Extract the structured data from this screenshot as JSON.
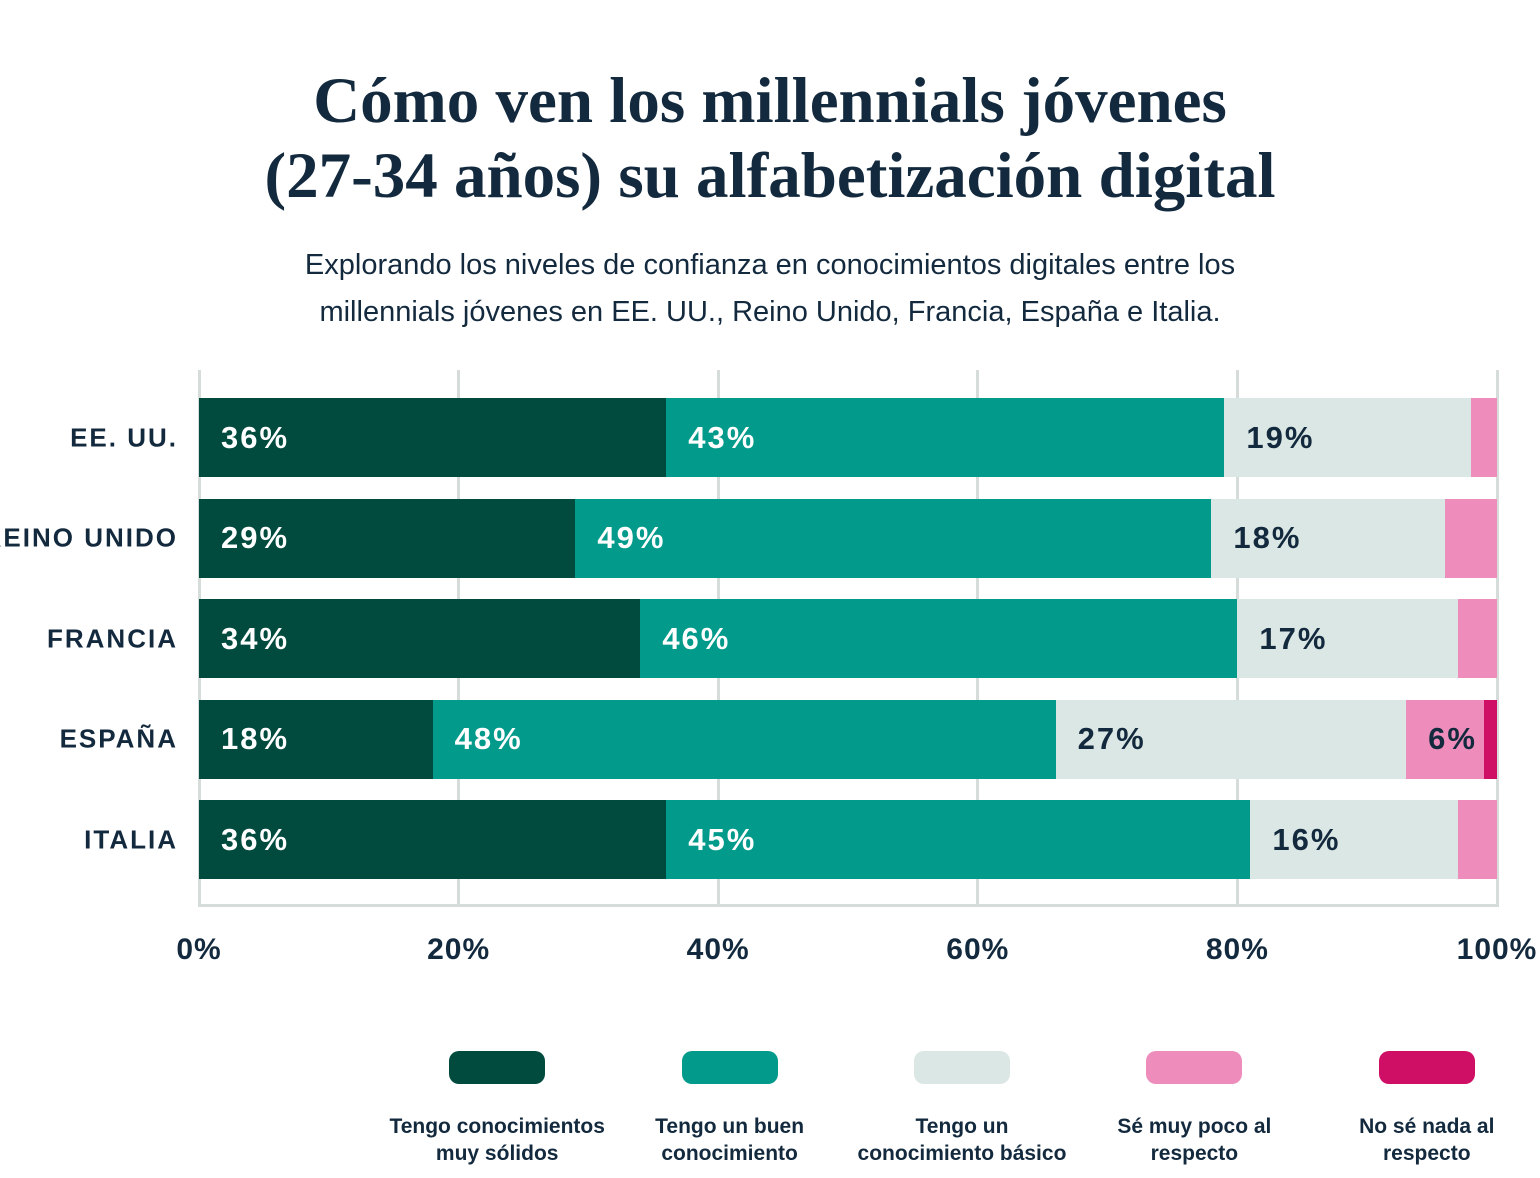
{
  "title": {
    "line1": "Cómo ven los millennials jóvenes",
    "line2": "(27-34 años) su alfabetización digital"
  },
  "subtitle": {
    "line1": "Explorando los niveles de confianza en conocimientos digitales entre los",
    "line2": "millennials jóvenes en EE. UU., Reino Unido, Francia, España e Italia."
  },
  "colors": {
    "text_navy": "#13293d",
    "gridline": "#d6dcd9",
    "background": "#ffffff"
  },
  "chart_data": {
    "type": "bar",
    "orientation": "horizontal",
    "stacked": true,
    "title": "Cómo ven los millennials jóvenes (27-34 años) su alfabetización digital",
    "subtitle": "Explorando los niveles de confianza en conocimientos digitales entre los millennials jóvenes en EE. UU., Reino Unido, Francia, España e Italia.",
    "categories": [
      "EE. UU.",
      "REINO UNIDO",
      "FRANCIA",
      "ESPAÑA",
      "ITALIA"
    ],
    "series": [
      {
        "name": "Tengo conocimientos muy sólidos",
        "legend_lines": [
          "Tengo conocimientos",
          "muy sólidos"
        ],
        "color": "#004a3e",
        "label_color": "#ffffff",
        "values": [
          36,
          29,
          34,
          18,
          36
        ]
      },
      {
        "name": "Tengo un buen conocimiento",
        "legend_lines": [
          "Tengo un buen",
          "conocimiento"
        ],
        "color": "#019a8b",
        "label_color": "#ffffff",
        "values": [
          43,
          49,
          46,
          48,
          45
        ]
      },
      {
        "name": "Tengo un conocimiento básico",
        "legend_lines": [
          "Tengo un",
          "conocimiento básico"
        ],
        "color": "#dbe7e4",
        "label_color": "#13293d",
        "values": [
          19,
          18,
          17,
          27,
          16
        ]
      },
      {
        "name": "Sé muy poco al respecto",
        "legend_lines": [
          "Sé muy poco al",
          "respecto"
        ],
        "color": "#ee8dbb",
        "label_color": "#13293d",
        "values": [
          2,
          4,
          3,
          6,
          3
        ]
      },
      {
        "name": "No sé nada al respecto",
        "legend_lines": [
          "No sé nada al",
          "respecto"
        ],
        "color": "#cf0e66",
        "label_color": "#13293d",
        "values": [
          0,
          0,
          0,
          1,
          0
        ]
      }
    ],
    "x_ticks": [
      "0%",
      "20%",
      "40%",
      "60%",
      "80%",
      "100%"
    ],
    "xlim": [
      0,
      100
    ],
    "value_suffix": "%",
    "label_threshold": 6,
    "grid": true,
    "legend_position": "bottom"
  }
}
